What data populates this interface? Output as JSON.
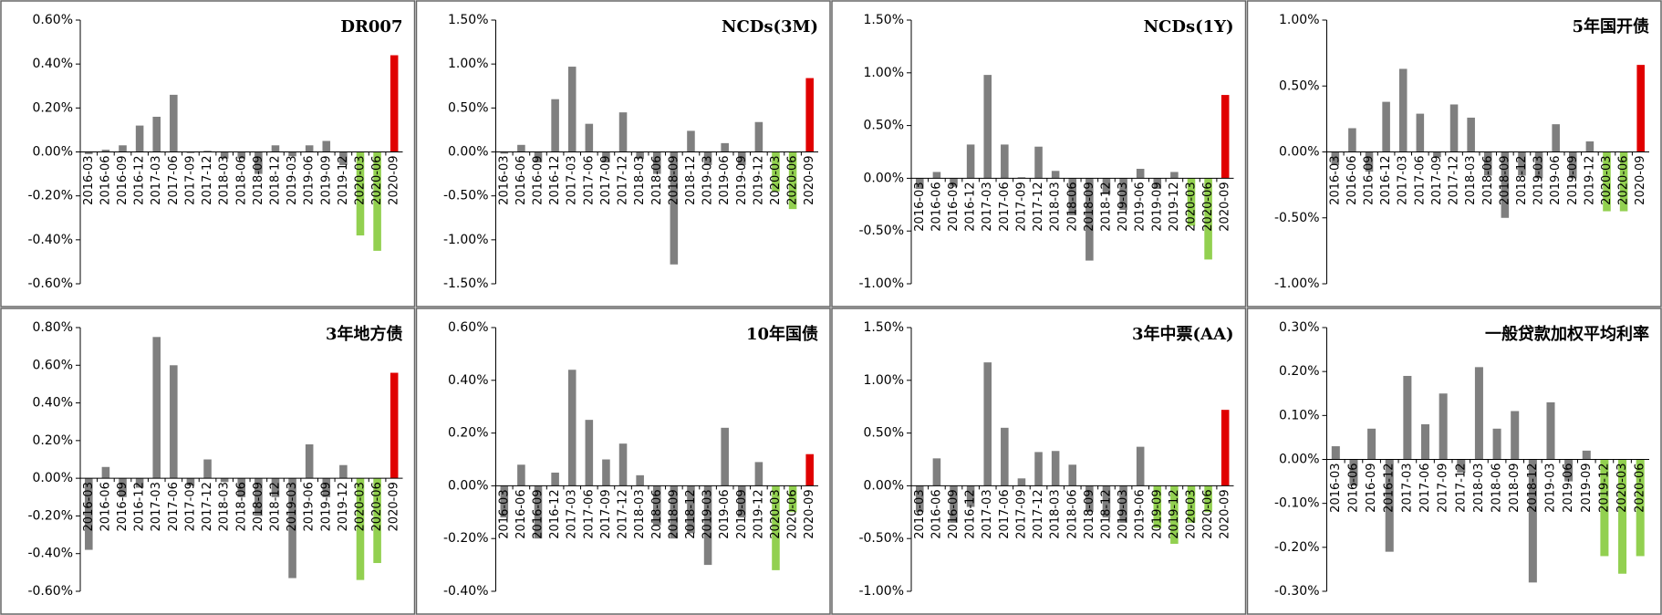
{
  "chart_data": [
    {
      "type": "bar",
      "title": "DR007",
      "categories": [
        "2016-03",
        "2016-06",
        "2016-09",
        "2016-12",
        "2017-03",
        "2017-06",
        "2017-09",
        "2017-12",
        "2018-03",
        "2018-06",
        "2018-09",
        "2018-12",
        "2019-03",
        "2019-06",
        "2019-09",
        "2019-12",
        "2020-03",
        "2020-06",
        "2020-09"
      ],
      "values": [
        -0.01,
        0.01,
        0.03,
        0.12,
        0.16,
        0.26,
        -0.005,
        0.005,
        -0.03,
        -0.03,
        -0.1,
        0.03,
        -0.02,
        0.03,
        0.05,
        -0.06,
        -0.38,
        -0.45,
        0.44
      ],
      "colors": [
        "#7f7f7f",
        "#7f7f7f",
        "#7f7f7f",
        "#7f7f7f",
        "#7f7f7f",
        "#7f7f7f",
        "#7f7f7f",
        "#7f7f7f",
        "#7f7f7f",
        "#7f7f7f",
        "#7f7f7f",
        "#7f7f7f",
        "#7f7f7f",
        "#7f7f7f",
        "#7f7f7f",
        "#7f7f7f",
        "#92d050",
        "#92d050",
        "#e00000"
      ],
      "ylim": [
        -0.6,
        0.6
      ],
      "yticks": [
        {
          "value": -0.6,
          "label": "-0.60%"
        },
        {
          "value": -0.4,
          "label": "-0.40%"
        },
        {
          "value": -0.2,
          "label": "-0.20%"
        },
        {
          "value": 0,
          "label": "0.00%"
        },
        {
          "value": 0.2,
          "label": "0.20%"
        },
        {
          "value": 0.4,
          "label": "0.40%"
        },
        {
          "value": 0.6,
          "label": "0.60%"
        }
      ]
    },
    {
      "type": "bar",
      "title": "NCDs(3M)",
      "categories": [
        "2016-03",
        "2016-06",
        "2016-09",
        "2016-12",
        "2017-03",
        "2017-06",
        "2017-09",
        "2017-12",
        "2018-03",
        "2018-06",
        "2018-09",
        "2018-12",
        "2019-03",
        "2019-06",
        "2019-09",
        "2019-12",
        "2020-03",
        "2020-06",
        "2020-09"
      ],
      "values": [
        -0.02,
        0.08,
        -0.12,
        0.6,
        0.97,
        0.32,
        -0.12,
        0.45,
        -0.08,
        -0.25,
        -1.28,
        0.24,
        -0.15,
        0.1,
        -0.15,
        0.34,
        -0.45,
        -0.65,
        0.84
      ],
      "colors": [
        "#7f7f7f",
        "#7f7f7f",
        "#7f7f7f",
        "#7f7f7f",
        "#7f7f7f",
        "#7f7f7f",
        "#7f7f7f",
        "#7f7f7f",
        "#7f7f7f",
        "#7f7f7f",
        "#7f7f7f",
        "#7f7f7f",
        "#7f7f7f",
        "#7f7f7f",
        "#7f7f7f",
        "#7f7f7f",
        "#92d050",
        "#92d050",
        "#e00000"
      ],
      "ylim": [
        -1.5,
        1.5
      ],
      "yticks": [
        {
          "value": -1.5,
          "label": "-1.50%"
        },
        {
          "value": -1,
          "label": "-1.00%"
        },
        {
          "value": -0.5,
          "label": "-0.50%"
        },
        {
          "value": 0,
          "label": "0.00%"
        },
        {
          "value": 0.5,
          "label": "0.50%"
        },
        {
          "value": 1,
          "label": "1.00%"
        },
        {
          "value": 1.5,
          "label": "1.50%"
        }
      ]
    },
    {
      "type": "bar",
      "title": "NCDs(1Y)",
      "categories": [
        "2016-03",
        "2016-06",
        "2016-09",
        "2016-12",
        "2017-03",
        "2017-06",
        "2017-09",
        "2017-12",
        "2018-03",
        "2018-06",
        "2018-09",
        "2018-12",
        "2019-03",
        "2019-06",
        "2019-09",
        "2019-12",
        "2020-03",
        "2020-06",
        "2020-09"
      ],
      "values": [
        -0.1,
        0.06,
        -0.08,
        0.32,
        0.98,
        0.32,
        0.01,
        0.3,
        0.07,
        -0.35,
        -0.78,
        -0.15,
        -0.3,
        0.09,
        -0.1,
        0.06,
        -0.45,
        -0.77,
        0.79
      ],
      "colors": [
        "#7f7f7f",
        "#7f7f7f",
        "#7f7f7f",
        "#7f7f7f",
        "#7f7f7f",
        "#7f7f7f",
        "#7f7f7f",
        "#7f7f7f",
        "#7f7f7f",
        "#7f7f7f",
        "#7f7f7f",
        "#7f7f7f",
        "#7f7f7f",
        "#7f7f7f",
        "#7f7f7f",
        "#7f7f7f",
        "#92d050",
        "#92d050",
        "#e00000"
      ],
      "ylim": [
        -1,
        1.5
      ],
      "yticks": [
        {
          "value": -1,
          "label": "-1.00%"
        },
        {
          "value": -0.5,
          "label": "-0.50%"
        },
        {
          "value": 0,
          "label": "0.00%"
        },
        {
          "value": 0.5,
          "label": "0.50%"
        },
        {
          "value": 1,
          "label": "1.00%"
        },
        {
          "value": 1.5,
          "label": "1.50%"
        }
      ]
    },
    {
      "type": "bar",
      "title": "5年国开债",
      "categories": [
        "2016-03",
        "2016-06",
        "2016-09",
        "2016-12",
        "2017-03",
        "2017-06",
        "2017-09",
        "2017-12",
        "2018-03",
        "2018-06",
        "2018-09",
        "2018-12",
        "2019-03",
        "2019-06",
        "2019-09",
        "2019-12",
        "2020-03",
        "2020-06",
        "2020-09"
      ],
      "values": [
        -0.1,
        0.18,
        -0.15,
        0.38,
        0.63,
        0.29,
        -0.04,
        0.36,
        0.26,
        -0.18,
        -0.5,
        -0.18,
        -0.2,
        0.21,
        -0.2,
        0.08,
        -0.45,
        -0.45,
        0.66
      ],
      "colors": [
        "#7f7f7f",
        "#7f7f7f",
        "#7f7f7f",
        "#7f7f7f",
        "#7f7f7f",
        "#7f7f7f",
        "#7f7f7f",
        "#7f7f7f",
        "#7f7f7f",
        "#7f7f7f",
        "#7f7f7f",
        "#7f7f7f",
        "#7f7f7f",
        "#7f7f7f",
        "#7f7f7f",
        "#7f7f7f",
        "#92d050",
        "#92d050",
        "#e00000"
      ],
      "ylim": [
        -1,
        1
      ],
      "yticks": [
        {
          "value": -1,
          "label": "-1.00%"
        },
        {
          "value": -0.5,
          "label": "-0.50%"
        },
        {
          "value": 0,
          "label": "0.00%"
        },
        {
          "value": 0.5,
          "label": "0.50%"
        },
        {
          "value": 1,
          "label": "1.00%"
        }
      ]
    },
    {
      "type": "bar",
      "title": "3年地方债",
      "categories": [
        "2016-03",
        "2016-06",
        "2016-09",
        "2016-12",
        "2017-03",
        "2017-06",
        "2017-09",
        "2017-12",
        "2018-03",
        "2018-06",
        "2018-09",
        "2018-12",
        "2019-03",
        "2019-06",
        "2019-09",
        "2019-12",
        "2020-03",
        "2020-06",
        "2020-09"
      ],
      "values": [
        -0.38,
        0.06,
        -0.1,
        -0.05,
        0.75,
        0.6,
        -0.04,
        0.1,
        -0.02,
        -0.1,
        -0.2,
        -0.1,
        -0.53,
        0.18,
        -0.1,
        0.07,
        -0.54,
        -0.45,
        0.56
      ],
      "colors": [
        "#7f7f7f",
        "#7f7f7f",
        "#7f7f7f",
        "#7f7f7f",
        "#7f7f7f",
        "#7f7f7f",
        "#7f7f7f",
        "#7f7f7f",
        "#7f7f7f",
        "#7f7f7f",
        "#7f7f7f",
        "#7f7f7f",
        "#7f7f7f",
        "#7f7f7f",
        "#7f7f7f",
        "#7f7f7f",
        "#92d050",
        "#92d050",
        "#e00000"
      ],
      "ylim": [
        -0.6,
        0.8
      ],
      "yticks": [
        {
          "value": -0.6,
          "label": "-0.60%"
        },
        {
          "value": -0.4,
          "label": "-0.40%"
        },
        {
          "value": -0.2,
          "label": "-0.20%"
        },
        {
          "value": 0,
          "label": "0.00%"
        },
        {
          "value": 0.2,
          "label": "0.20%"
        },
        {
          "value": 0.4,
          "label": "0.40%"
        },
        {
          "value": 0.6,
          "label": "0.60%"
        },
        {
          "value": 0.8,
          "label": "0.80%"
        }
      ]
    },
    {
      "type": "bar",
      "title": "10年国债",
      "categories": [
        "2016-03",
        "2016-06",
        "2016-09",
        "2016-12",
        "2017-03",
        "2017-06",
        "2017-09",
        "2017-12",
        "2018-03",
        "2018-06",
        "2018-09",
        "2018-12",
        "2019-03",
        "2019-06",
        "2019-09",
        "2019-12",
        "2020-03",
        "2020-06",
        "2020-09"
      ],
      "values": [
        -0.12,
        0.08,
        -0.2,
        0.05,
        0.44,
        0.25,
        0.1,
        0.16,
        0.04,
        -0.15,
        -0.2,
        -0.18,
        -0.3,
        0.22,
        -0.12,
        0.09,
        -0.32,
        -0.1,
        0.12
      ],
      "colors": [
        "#7f7f7f",
        "#7f7f7f",
        "#7f7f7f",
        "#7f7f7f",
        "#7f7f7f",
        "#7f7f7f",
        "#7f7f7f",
        "#7f7f7f",
        "#7f7f7f",
        "#7f7f7f",
        "#7f7f7f",
        "#7f7f7f",
        "#7f7f7f",
        "#7f7f7f",
        "#7f7f7f",
        "#7f7f7f",
        "#92d050",
        "#92d050",
        "#e00000"
      ],
      "ylim": [
        -0.4,
        0.6
      ],
      "yticks": [
        {
          "value": -0.4,
          "label": "-0.40%"
        },
        {
          "value": -0.2,
          "label": "-0.20%"
        },
        {
          "value": 0,
          "label": "0.00%"
        },
        {
          "value": 0.2,
          "label": "0.20%"
        },
        {
          "value": 0.4,
          "label": "0.40%"
        },
        {
          "value": 0.6,
          "label": "0.60%"
        }
      ]
    },
    {
      "type": "bar",
      "title": "3年中票(AA)",
      "categories": [
        "2016-03",
        "2016-06",
        "2016-09",
        "2016-12",
        "2017-03",
        "2017-06",
        "2017-09",
        "2017-12",
        "2018-03",
        "2018-06",
        "2018-09",
        "2018-12",
        "2019-03",
        "2019-06",
        "2019-09",
        "2019-12",
        "2020-03",
        "2020-06",
        "2020-09"
      ],
      "values": [
        -0.25,
        0.26,
        -0.35,
        -0.2,
        1.17,
        0.55,
        0.07,
        0.32,
        0.33,
        0.2,
        -0.25,
        -0.3,
        -0.35,
        0.37,
        -0.4,
        -0.55,
        -0.35,
        -0.25,
        0.72
      ],
      "colors": [
        "#7f7f7f",
        "#7f7f7f",
        "#7f7f7f",
        "#7f7f7f",
        "#7f7f7f",
        "#7f7f7f",
        "#7f7f7f",
        "#7f7f7f",
        "#7f7f7f",
        "#7f7f7f",
        "#7f7f7f",
        "#7f7f7f",
        "#7f7f7f",
        "#7f7f7f",
        "#92d050",
        "#92d050",
        "#92d050",
        "#92d050",
        "#e00000"
      ],
      "ylim": [
        -1,
        1.5
      ],
      "yticks": [
        {
          "value": -1,
          "label": "-1.00%"
        },
        {
          "value": -0.5,
          "label": "-0.50%"
        },
        {
          "value": 0,
          "label": "0.00%"
        },
        {
          "value": 0.5,
          "label": "0.50%"
        },
        {
          "value": 1,
          "label": "1.00%"
        },
        {
          "value": 1.5,
          "label": "1.50%"
        }
      ]
    },
    {
      "type": "bar",
      "title": "一般贷款加权平均利率",
      "categories": [
        "2016-03",
        "2016-06",
        "2016-09",
        "2016-12",
        "2017-03",
        "2017-06",
        "2017-09",
        "2017-12",
        "2018-03",
        "2018-06",
        "2018-09",
        "2018-12",
        "2019-03",
        "2019-06",
        "2019-09",
        "2019-12",
        "2020-03",
        "2020-06"
      ],
      "values": [
        0.03,
        -0.06,
        0.07,
        -0.21,
        0.19,
        0.08,
        0.15,
        -0.03,
        0.21,
        0.07,
        0.11,
        -0.28,
        0.13,
        -0.05,
        0.02,
        -0.22,
        -0.26,
        -0.22
      ],
      "colors": [
        "#7f7f7f",
        "#7f7f7f",
        "#7f7f7f",
        "#7f7f7f",
        "#7f7f7f",
        "#7f7f7f",
        "#7f7f7f",
        "#7f7f7f",
        "#7f7f7f",
        "#7f7f7f",
        "#7f7f7f",
        "#7f7f7f",
        "#7f7f7f",
        "#7f7f7f",
        "#7f7f7f",
        "#92d050",
        "#92d050",
        "#92d050"
      ],
      "ylim": [
        -0.3,
        0.3
      ],
      "yticks": [
        {
          "value": -0.3,
          "label": "-0.30%"
        },
        {
          "value": -0.2,
          "label": "-0.20%"
        },
        {
          "value": -0.1,
          "label": "-0.10%"
        },
        {
          "value": 0,
          "label": "0.00%"
        },
        {
          "value": 0.1,
          "label": "0.10%"
        },
        {
          "value": 0.2,
          "label": "0.20%"
        },
        {
          "value": 0.3,
          "label": "0.30%"
        }
      ]
    }
  ]
}
